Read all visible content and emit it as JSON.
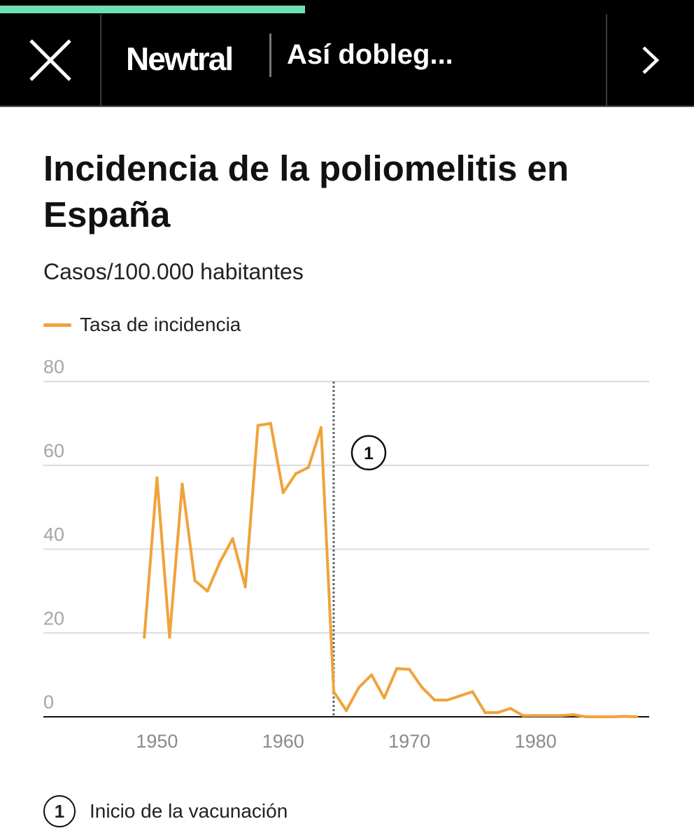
{
  "reading_progress": 0.44,
  "header": {
    "brand": "Newtral",
    "article_title": "Así dobleg..."
  },
  "chart_data": {
    "type": "line",
    "title": "Incidencia de la poliomelitis en España",
    "subtitle": "Casos/100.000 habitantes",
    "legend_position": "top-left",
    "grid": true,
    "xlim": [
      1941,
      1989
    ],
    "ylim": [
      0,
      80
    ],
    "x_ticks": [
      1950,
      1960,
      1970,
      1980
    ],
    "y_ticks": [
      0,
      20,
      40,
      60,
      80
    ],
    "series": [
      {
        "name": "Tasa de incidencia",
        "color": "#f0a33a",
        "x": [
          1949,
          1950,
          1951,
          1952,
          1953,
          1954,
          1955,
          1956,
          1957,
          1958,
          1959,
          1960,
          1961,
          1962,
          1963,
          1964,
          1965,
          1966,
          1967,
          1968,
          1969,
          1970,
          1971,
          1972,
          1973,
          1974,
          1975,
          1976,
          1977,
          1978,
          1979,
          1980,
          1981,
          1982,
          1983,
          1984,
          1985,
          1986,
          1987,
          1988
        ],
        "y": [
          19,
          57,
          19,
          55.5,
          32.5,
          30,
          37,
          42.5,
          31,
          69.5,
          70,
          53.5,
          58,
          59.5,
          69,
          6,
          1.5,
          7,
          10,
          4.5,
          11.5,
          11.3,
          7,
          4,
          4,
          5,
          6,
          1,
          1,
          2,
          0.3,
          0.3,
          0.3,
          0.3,
          0.5,
          0,
          0,
          0,
          0.1,
          0
        ]
      }
    ],
    "annotations": [
      {
        "x": 1964,
        "marker": "1",
        "label": "Inicio de la vacunación"
      }
    ]
  },
  "colors": {
    "accent": "#f0a33a",
    "progress": "#6fe0b4",
    "topbar": "#000000"
  },
  "icons": {
    "close": "close-icon",
    "next": "chevron-right-icon"
  }
}
